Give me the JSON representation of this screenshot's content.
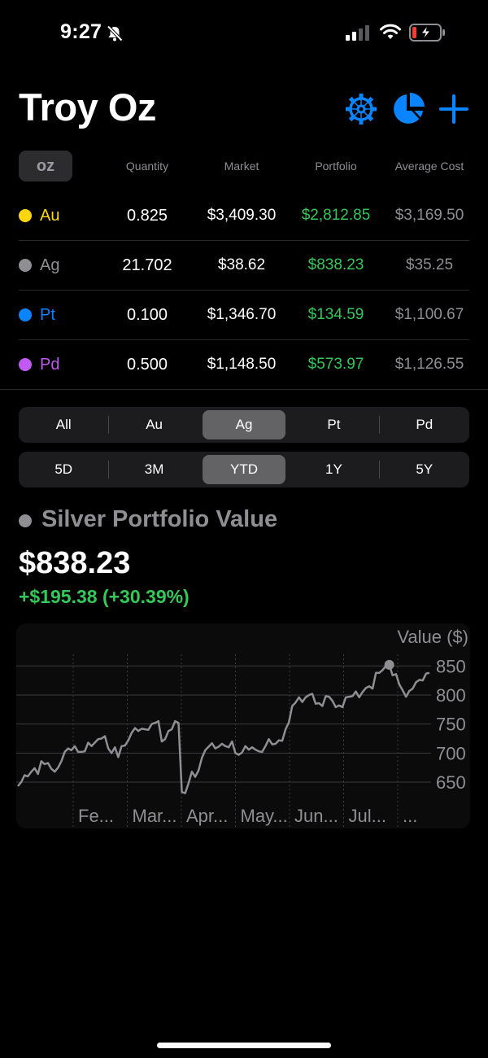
{
  "status_bar": {
    "time": "9:27"
  },
  "header": {
    "title": "Troy Oz"
  },
  "table": {
    "unit": "oz",
    "columns": [
      "Quantity",
      "Market",
      "Portfolio",
      "Average Cost"
    ],
    "rows": [
      {
        "symbol": "Au",
        "color": "#ffd60a",
        "quantity": "0.825",
        "market": "$3,409.30",
        "portfolio": "$2,812.85",
        "avg_cost": "$3,169.50"
      },
      {
        "symbol": "Ag",
        "color": "#8e8e93",
        "quantity": "21.702",
        "market": "$38.62",
        "portfolio": "$838.23",
        "avg_cost": "$35.25"
      },
      {
        "symbol": "Pt",
        "color": "#0a84ff",
        "quantity": "0.100",
        "market": "$1,346.70",
        "portfolio": "$134.59",
        "avg_cost": "$1,100.67"
      },
      {
        "symbol": "Pd",
        "color": "#bf5af2",
        "quantity": "0.500",
        "market": "$1,148.50",
        "portfolio": "$573.97",
        "avg_cost": "$1,126.55"
      }
    ]
  },
  "metal_segments": {
    "items": [
      "All",
      "Au",
      "Ag",
      "Pt",
      "Pd"
    ],
    "selected": "Ag"
  },
  "range_segments": {
    "items": [
      "5D",
      "3M",
      "YTD",
      "1Y",
      "5Y"
    ],
    "selected": "YTD"
  },
  "summary": {
    "title": "Silver Portfolio Value",
    "value": "$838.23",
    "change": "+$195.38 (+30.39%)"
  },
  "colors": {
    "accent": "#0a84ff",
    "positive": "#34c759",
    "silver": "#8e8e93"
  },
  "chart_data": {
    "type": "line",
    "ylabel": "Value ($)",
    "ylim": [
      615,
      870
    ],
    "yticks": [
      650,
      700,
      750,
      800,
      850
    ],
    "x_labels": [
      "Fe...",
      "Mar...",
      "Apr...",
      "May...",
      "Jun...",
      "Jul...",
      "..."
    ],
    "series": [
      {
        "values": [
          643,
          650,
          662,
          660,
          668,
          674,
          664,
          686,
          681,
          683,
          673,
          668,
          675,
          686,
          702,
          708,
          705,
          712,
          702,
          702,
          703,
          718,
          712,
          718,
          724,
          725,
          729,
          708,
          700,
          710,
          693,
          712,
          713,
          722,
          735,
          743,
          738,
          742,
          741,
          740,
          750,
          752,
          755,
          720,
          724,
          738,
          741,
          755,
          752,
          633,
          631,
          648,
          668,
          659,
          670,
          692,
          705,
          711,
          717,
          708,
          711,
          716,
          712,
          710,
          720,
          700,
          697,
          701,
          712,
          706,
          710,
          706,
          703,
          702,
          712,
          724,
          715,
          716,
          722,
          721,
          741,
          753,
          781,
          787,
          796,
          788,
          796,
          800,
          802,
          785,
          786,
          781,
          798,
          797,
          790,
          779,
          782,
          779,
          796,
          797,
          798,
          806,
          796,
          805,
          812,
          815,
          811,
          838,
          838,
          843,
          850,
          852,
          834,
          836,
          818,
          808,
          797,
          807,
          811,
          822,
          826,
          825,
          837,
          838
        ]
      }
    ],
    "highlight": {
      "value": 852
    }
  }
}
